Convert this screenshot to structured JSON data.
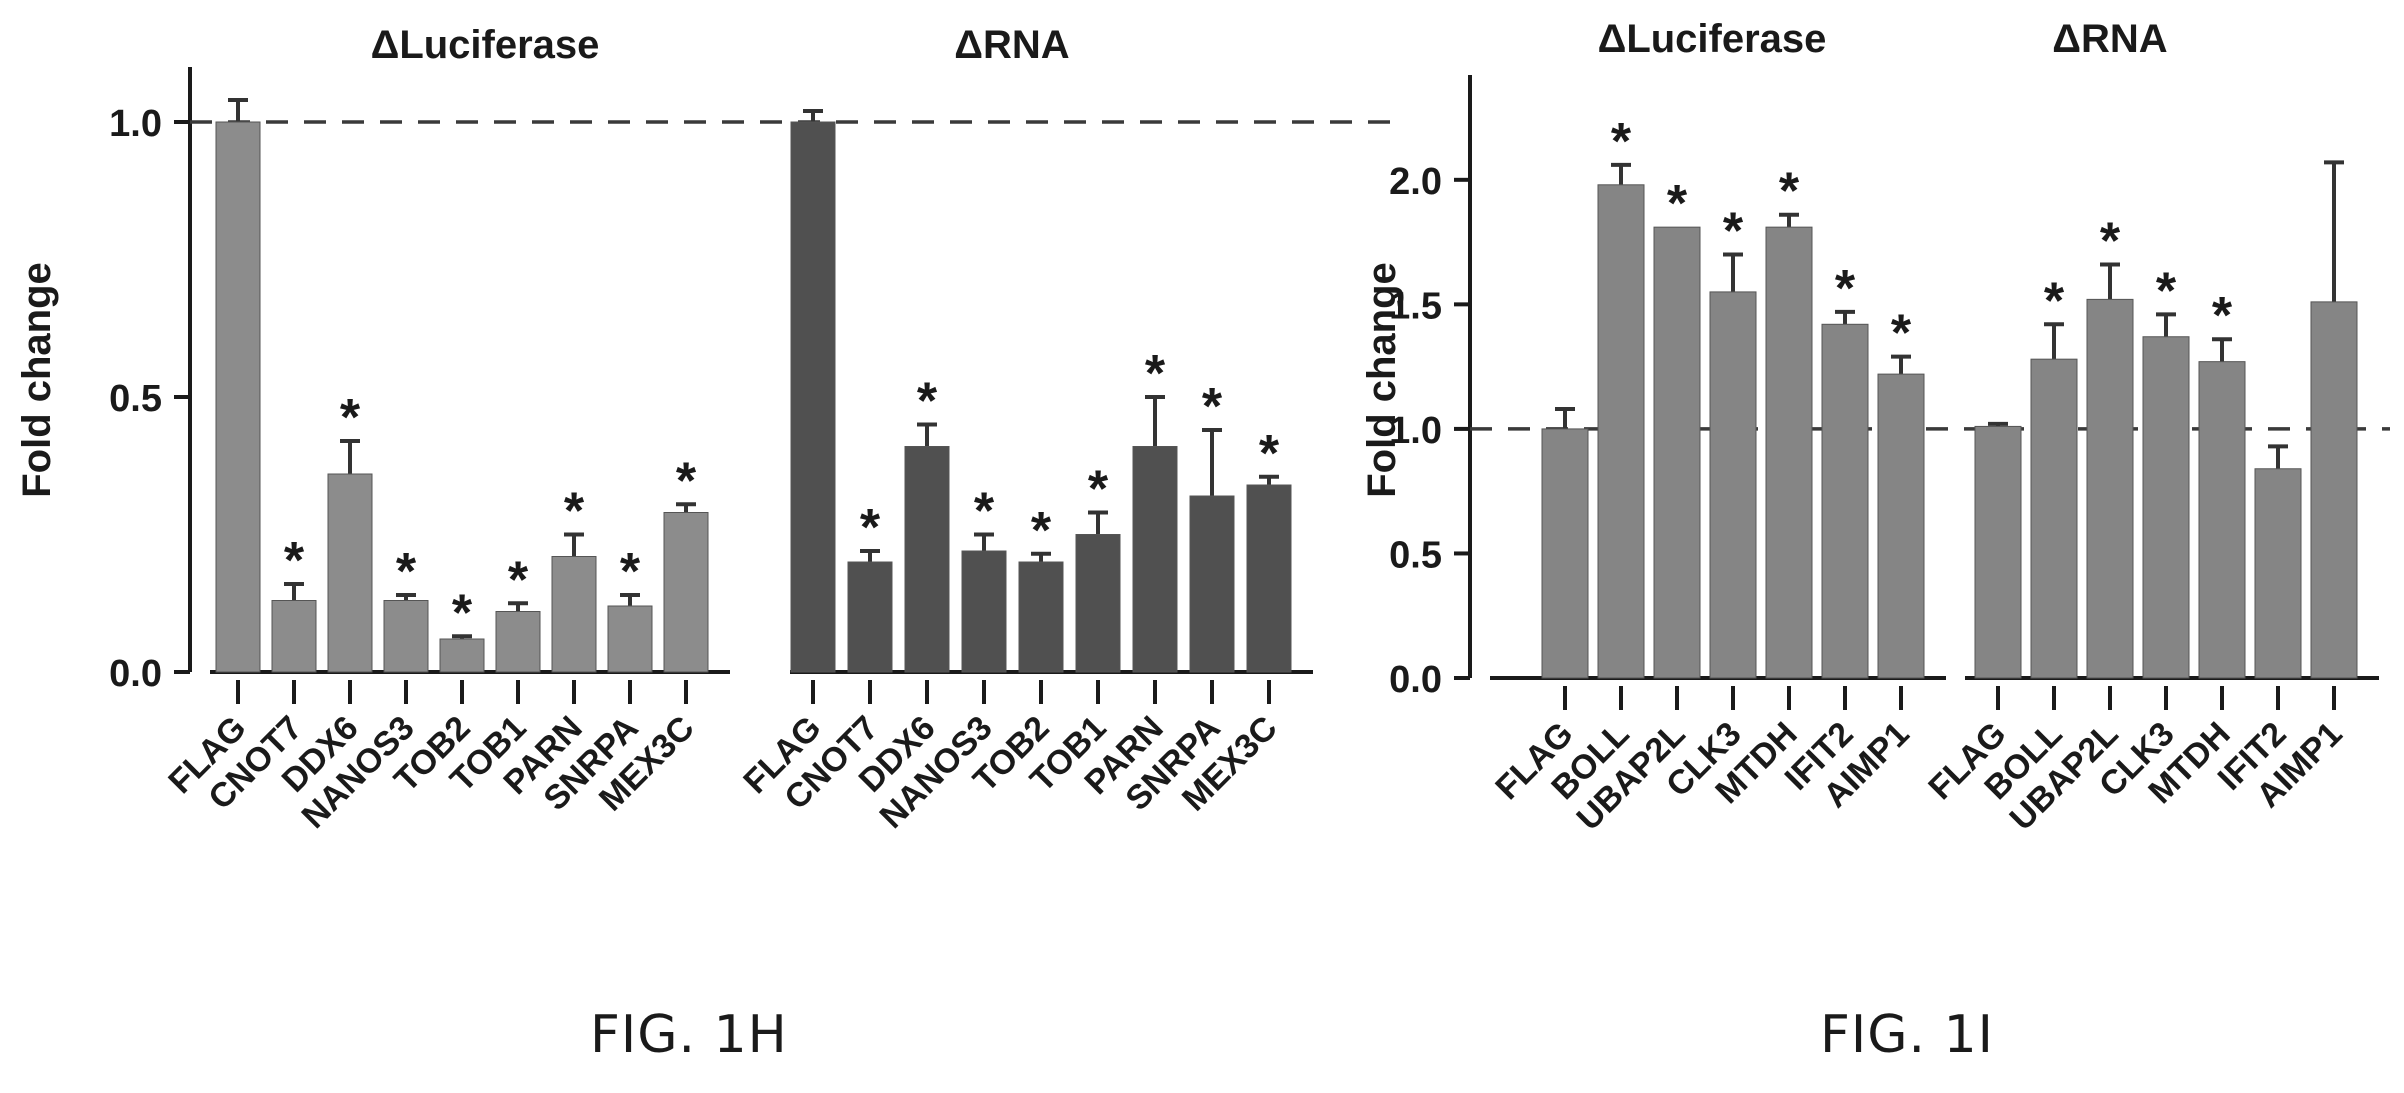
{
  "colors": {
    "luciferase_bar": "#8c8c8c",
    "rna_bar_h": "#505050",
    "bar_i": "#858585",
    "axis": "#1a1a1a",
    "text": "#1a1a1a"
  },
  "figure_labels": [
    "FIG. 1H",
    "FIG. 1I"
  ],
  "chart_data": [
    {
      "id": "fig1h",
      "type": "bar",
      "ylabel": "Fold change",
      "ylim": [
        0,
        1.0
      ],
      "yticks": [
        0.0,
        0.5,
        1.0
      ],
      "ytick_labels": [
        "0.0",
        "0.5",
        "1.0"
      ],
      "reference_line": 1.0,
      "reference_style": "dashed",
      "panels": [
        {
          "title": "ΔLuciferase",
          "categories": [
            "FLAG",
            "CNOT7",
            "DDX6",
            "NANOS3",
            "TOB2",
            "TOB1",
            "PARN",
            "SNRPA",
            "MEX3C"
          ],
          "values": [
            1.0,
            0.13,
            0.36,
            0.13,
            0.06,
            0.11,
            0.21,
            0.12,
            0.29
          ],
          "errors": [
            0.04,
            0.03,
            0.06,
            0.01,
            0.005,
            0.015,
            0.04,
            0.02,
            0.015
          ],
          "significant": [
            false,
            true,
            true,
            true,
            true,
            true,
            true,
            true,
            true
          ]
        },
        {
          "title": "ΔRNA",
          "categories": [
            "FLAG",
            "CNOT7",
            "DDX6",
            "NANOS3",
            "TOB2",
            "TOB1",
            "PARN",
            "SNRPA",
            "MEX3C"
          ],
          "values": [
            1.0,
            0.2,
            0.41,
            0.22,
            0.2,
            0.25,
            0.41,
            0.32,
            0.34
          ],
          "errors": [
            0.02,
            0.02,
            0.04,
            0.03,
            0.015,
            0.04,
            0.09,
            0.12,
            0.015
          ],
          "significant": [
            false,
            true,
            true,
            true,
            true,
            true,
            true,
            true,
            true
          ]
        }
      ]
    },
    {
      "id": "fig1i",
      "type": "bar",
      "ylabel": "Fold change",
      "ylim": [
        0,
        2.2
      ],
      "yticks": [
        0.0,
        0.5,
        1.0,
        1.5,
        2.0
      ],
      "ytick_labels": [
        "0.0",
        "0.5",
        "1.0",
        "1.5",
        "2.0"
      ],
      "reference_line": 1.0,
      "reference_style": "dashed",
      "panels": [
        {
          "title": "ΔLuciferase",
          "categories": [
            "FLAG",
            "BOLL",
            "UBAP2L",
            "CLK3",
            "MTDH",
            "IFIT2",
            "AIMP1"
          ],
          "values": [
            1.0,
            1.98,
            1.81,
            1.55,
            1.81,
            1.42,
            1.22
          ],
          "errors": [
            0.08,
            0.08,
            0.0,
            0.15,
            0.05,
            0.05,
            0.07
          ],
          "significant": [
            false,
            true,
            true,
            true,
            true,
            true,
            true
          ]
        },
        {
          "title": "ΔRNA",
          "categories": [
            "FLAG",
            "BOLL",
            "UBAP2L",
            "CLK3",
            "MTDH",
            "IFIT2",
            "AIMP1"
          ],
          "values": [
            1.01,
            1.28,
            1.52,
            1.37,
            1.27,
            0.84,
            1.51
          ],
          "errors": [
            0.01,
            0.14,
            0.14,
            0.09,
            0.09,
            0.09,
            0.56
          ],
          "significant": [
            false,
            true,
            true,
            true,
            true,
            false,
            false
          ]
        }
      ]
    }
  ]
}
